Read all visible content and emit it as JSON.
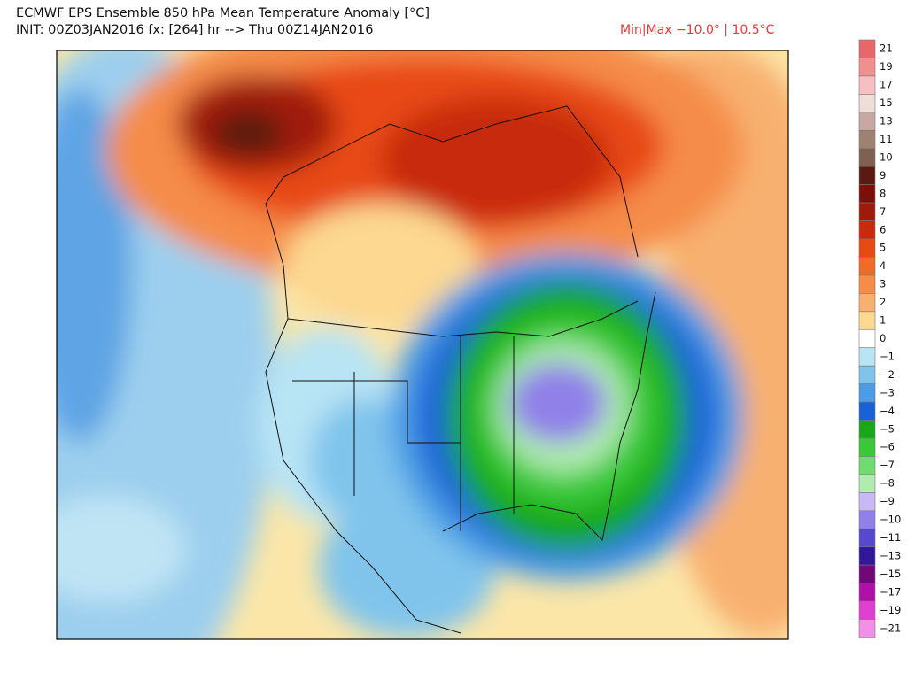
{
  "header": {
    "title": "ECMWF EPS Ensemble 850 hPa Mean Temperature Anomaly [°C]",
    "init": "INIT: 00Z03JAN2016 fx: [264] hr --> Thu 00Z14JAN2016",
    "minmax": "Min|Max −10.0° | 10.5°C"
  },
  "colorbar": {
    "labels": [
      "21",
      "19",
      "17",
      "15",
      "13",
      "11",
      "10",
      "9",
      "8",
      "7",
      "6",
      "5",
      "4",
      "3",
      "2",
      "1",
      "0",
      "−1",
      "−2",
      "−3",
      "−4",
      "−5",
      "−6",
      "−7",
      "−8",
      "−9",
      "−10",
      "−11",
      "−13",
      "−15",
      "−17",
      "−19",
      "−21"
    ],
    "colors": [
      "#e8686a",
      "#f0908e",
      "#f6c0c0",
      "#f0dcd8",
      "#c8a8a0",
      "#a08070",
      "#806050",
      "#5a1a10",
      "#7a1008",
      "#a01a0a",
      "#c82a0e",
      "#e84a14",
      "#f06a28",
      "#f58c48",
      "#f8b070",
      "#fcd890",
      "#ffffff",
      "#b8e4f4",
      "#80c4ec",
      "#4a9ce4",
      "#1a60d8",
      "#18a818",
      "#38c838",
      "#70dc70",
      "#b0ecb0",
      "#c8b8f4",
      "#9080e8",
      "#5848d0",
      "#301898",
      "#700878",
      "#b010a8",
      "#e040d0",
      "#f090e8"
    ]
  }
}
